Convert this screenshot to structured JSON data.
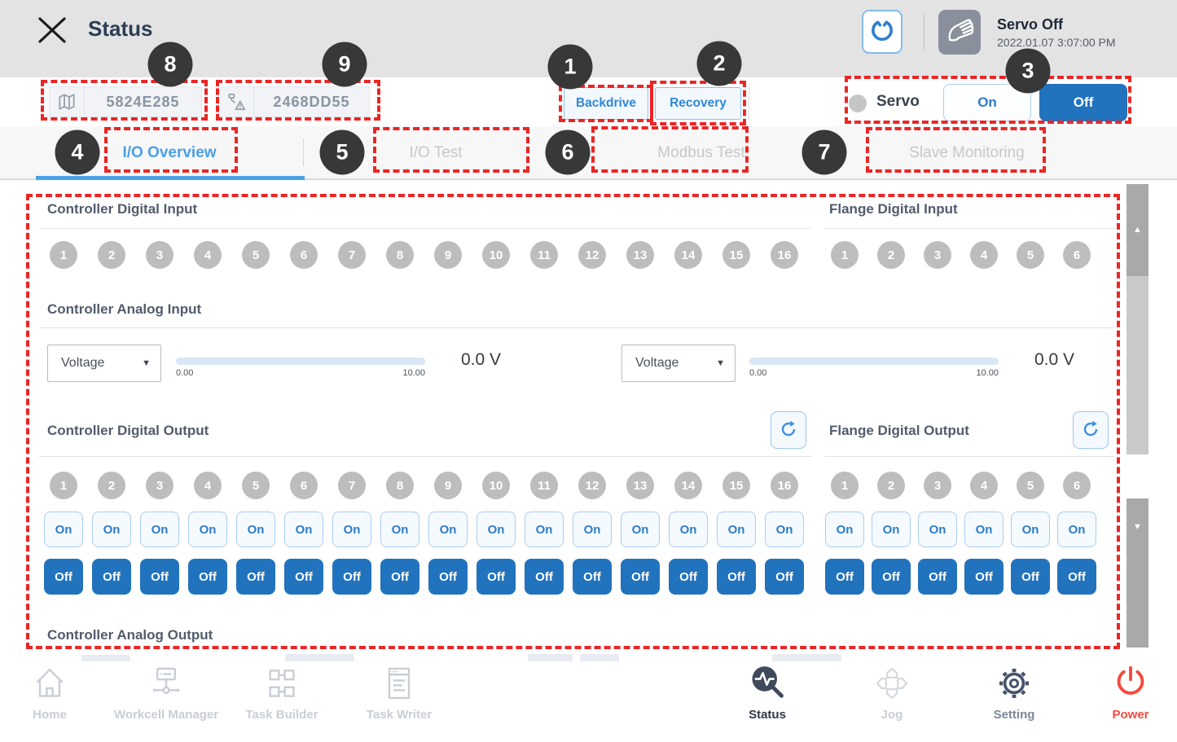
{
  "colors": {
    "accent_blue": "#2E7CC9",
    "solid_blue": "#2273BD",
    "tab_active_blue": "#4AA0E4",
    "annotation_red": "#EC2525",
    "balloon_bg": "#383838",
    "power_red": "#F4493E",
    "channel_gray": "#BDBDBD",
    "heading_slate": "#515C6B"
  },
  "header": {
    "title": "Status",
    "servo_state": "Servo Off",
    "datetime": "2022.01.07 3:07:00 PM"
  },
  "toolbar": {
    "robot_serial": "5824E285",
    "safety_serial": "2468DD55",
    "backdrive": "Backdrive",
    "recovery": "Recovery",
    "servo_label": "Servo",
    "servo_on": "On",
    "servo_off": "Off"
  },
  "tabs": [
    {
      "label": "I/O Overview",
      "active": true
    },
    {
      "label": "I/O Test",
      "active": false
    },
    {
      "label": "Modbus Test",
      "active": false
    },
    {
      "label": "Slave Monitoring",
      "active": false
    }
  ],
  "io": {
    "controller_digital_input": {
      "title": "Controller Digital Input",
      "channels": [
        "1",
        "2",
        "3",
        "4",
        "5",
        "6",
        "7",
        "8",
        "9",
        "10",
        "11",
        "12",
        "13",
        "14",
        "15",
        "16"
      ]
    },
    "flange_digital_input": {
      "title": "Flange Digital Input",
      "channels": [
        "1",
        "2",
        "3",
        "4",
        "5",
        "6"
      ]
    },
    "controller_analog_input": {
      "title": "Controller Analog Input",
      "channels": [
        {
          "mode": "Voltage",
          "min": "0.00",
          "max": "10.00",
          "value": "0.0 V"
        },
        {
          "mode": "Voltage",
          "min": "0.00",
          "max": "10.00",
          "value": "0.0 V"
        }
      ]
    },
    "controller_digital_output": {
      "title": "Controller Digital Output",
      "on_label": "On",
      "off_label": "Off",
      "channels": [
        "1",
        "2",
        "3",
        "4",
        "5",
        "6",
        "7",
        "8",
        "9",
        "10",
        "11",
        "12",
        "13",
        "14",
        "15",
        "16"
      ]
    },
    "flange_digital_output": {
      "title": "Flange Digital Output",
      "on_label": "On",
      "off_label": "Off",
      "channels": [
        "1",
        "2",
        "3",
        "4",
        "5",
        "6"
      ]
    },
    "controller_analog_output": {
      "title": "Controller Analog Output"
    }
  },
  "nav": [
    {
      "label": "Home"
    },
    {
      "label": "Workcell Manager"
    },
    {
      "label": "Task Builder"
    },
    {
      "label": "Task Writer"
    },
    {
      "label": "Status",
      "active": true
    },
    {
      "label": "Jog"
    },
    {
      "label": "Setting"
    },
    {
      "label": "Power"
    }
  ],
  "annotations": {
    "balloons": [
      "1",
      "2",
      "3",
      "4",
      "5",
      "6",
      "7",
      "8",
      "9"
    ]
  }
}
